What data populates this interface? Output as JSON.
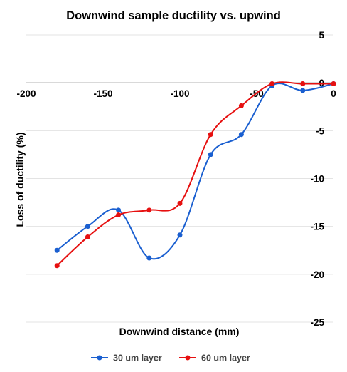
{
  "chart_data": {
    "type": "line",
    "title": "Downwind sample ductility vs. upwind",
    "xlabel": "Downwind distance (mm)",
    "ylabel": "Loss of ductility (%)",
    "xlim": [
      -200,
      0
    ],
    "ylim": [
      -25,
      5
    ],
    "xticks": [
      -200,
      -150,
      -100,
      -50,
      0
    ],
    "yticks": [
      5,
      0,
      -5,
      -10,
      -15,
      -20,
      -25
    ],
    "grid": true,
    "legend_position": "bottom",
    "series": [
      {
        "name": "30 um layer",
        "color": "#1a5fd0",
        "x": [
          -180,
          -160,
          -140,
          -120,
          -100,
          -80,
          -60,
          -40,
          -20,
          0
        ],
        "y": [
          -17.5,
          -15.0,
          -13.3,
          -18.3,
          -15.9,
          -7.5,
          -5.4,
          -0.3,
          -0.8,
          -0.1
        ]
      },
      {
        "name": "60 um layer",
        "color": "#e61010",
        "x": [
          -180,
          -160,
          -140,
          -120,
          -100,
          -80,
          -60,
          -40,
          -20,
          0
        ],
        "y": [
          -19.1,
          -16.1,
          -13.8,
          -13.3,
          -12.6,
          -5.4,
          -2.4,
          -0.1,
          -0.1,
          -0.1
        ]
      }
    ]
  }
}
